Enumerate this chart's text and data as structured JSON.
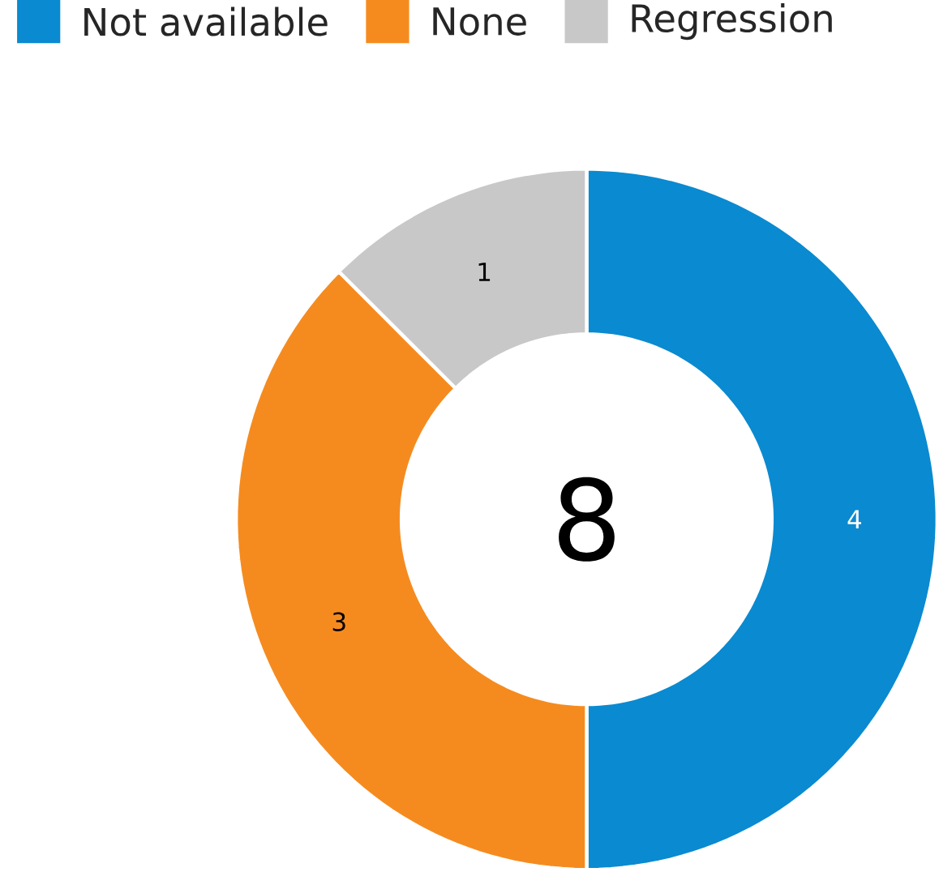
{
  "chart_data": {
    "type": "donut",
    "categories": [
      "Not available",
      "None",
      "Regression"
    ],
    "values": [
      4,
      3,
      1
    ],
    "colors": [
      "#0a8ad0",
      "#f58b1f",
      "#c8c8c8"
    ],
    "data_labels": true,
    "legend": "top left",
    "annotations": [
      "8"
    ]
  }
}
